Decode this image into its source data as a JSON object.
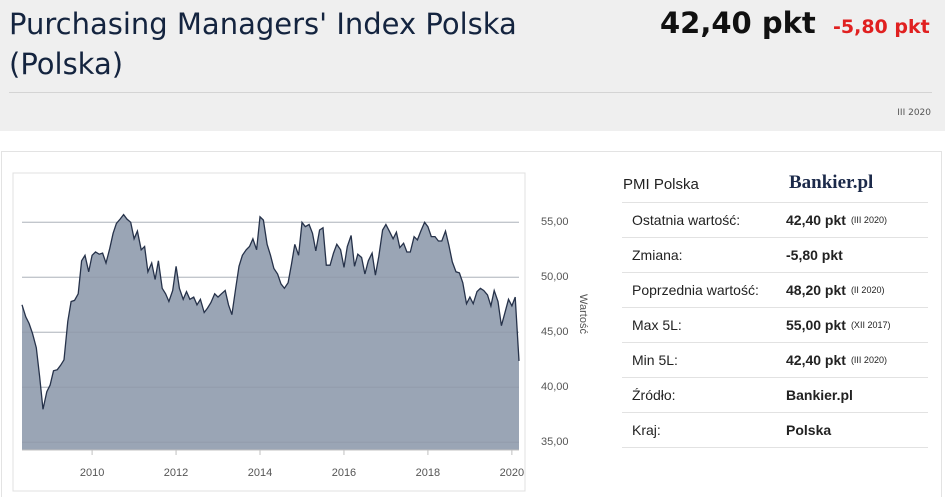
{
  "header": {
    "title": "Purchasing Managers' Index Polska (Polska)",
    "value": "42,40 pkt",
    "change": "-5,80 pkt",
    "date": "III 2020"
  },
  "chart_data": {
    "type": "area",
    "y_label": "Wartość",
    "color": "#9aa5b5",
    "line_color": "#26324a",
    "grid": true,
    "x": [
      2008.33,
      2008.42,
      2008.5,
      2008.58,
      2008.67,
      2008.75,
      2008.83,
      2008.92,
      2009.0,
      2009.08,
      2009.17,
      2009.25,
      2009.33,
      2009.42,
      2009.5,
      2009.58,
      2009.67,
      2009.75,
      2009.83,
      2009.92,
      2010.0,
      2010.08,
      2010.17,
      2010.25,
      2010.33,
      2010.42,
      2010.5,
      2010.58,
      2010.67,
      2010.75,
      2010.83,
      2010.92,
      2011.0,
      2011.08,
      2011.17,
      2011.25,
      2011.33,
      2011.42,
      2011.5,
      2011.58,
      2011.67,
      2011.75,
      2011.83,
      2011.92,
      2012.0,
      2012.08,
      2012.17,
      2012.25,
      2012.33,
      2012.42,
      2012.5,
      2012.58,
      2012.67,
      2012.75,
      2012.83,
      2012.92,
      2013.0,
      2013.08,
      2013.17,
      2013.25,
      2013.33,
      2013.42,
      2013.5,
      2013.58,
      2013.67,
      2013.75,
      2013.83,
      2013.92,
      2014.0,
      2014.08,
      2014.17,
      2014.25,
      2014.33,
      2014.42,
      2014.5,
      2014.58,
      2014.67,
      2014.75,
      2014.83,
      2014.92,
      2015.0,
      2015.08,
      2015.17,
      2015.25,
      2015.33,
      2015.42,
      2015.5,
      2015.58,
      2015.67,
      2015.75,
      2015.83,
      2015.92,
      2016.0,
      2016.08,
      2016.17,
      2016.25,
      2016.33,
      2016.42,
      2016.5,
      2016.58,
      2016.67,
      2016.75,
      2016.83,
      2016.92,
      2017.0,
      2017.08,
      2017.17,
      2017.25,
      2017.33,
      2017.42,
      2017.5,
      2017.58,
      2017.67,
      2017.75,
      2017.83,
      2017.92,
      2018.0,
      2018.08,
      2018.17,
      2018.25,
      2018.33,
      2018.42,
      2018.5,
      2018.58,
      2018.67,
      2018.75,
      2018.83,
      2018.92,
      2019.0,
      2019.08,
      2019.17,
      2019.25,
      2019.33,
      2019.42,
      2019.5,
      2019.58,
      2019.67,
      2019.75,
      2019.83,
      2019.92,
      2020.0,
      2020.08,
      2020.17
    ],
    "values": [
      47.5,
      46.4,
      45.8,
      44.9,
      43.6,
      41.0,
      38.0,
      39.6,
      40.2,
      41.5,
      41.6,
      42.0,
      42.5,
      46.0,
      47.8,
      47.9,
      48.5,
      51.5,
      52.0,
      50.5,
      52.0,
      52.3,
      52.1,
      52.2,
      51.3,
      52.6,
      54.0,
      54.9,
      55.3,
      55.7,
      55.3,
      55.0,
      53.5,
      54.2,
      52.5,
      52.8,
      50.5,
      51.3,
      49.8,
      51.5,
      49.0,
      48.5,
      47.8,
      48.8,
      51.0,
      49.0,
      48.0,
      48.7,
      48.0,
      48.2,
      47.5,
      48.0,
      46.8,
      47.2,
      47.7,
      48.5,
      48.2,
      48.5,
      48.8,
      47.5,
      46.6,
      49.0,
      51.0,
      52.0,
      52.5,
      52.8,
      53.5,
      52.5,
      55.5,
      55.2,
      53.0,
      52.0,
      50.8,
      50.3,
      49.4,
      49.0,
      49.5,
      51.2,
      53.0,
      52.0,
      55.0,
      54.6,
      54.8,
      54.0,
      52.4,
      54.3,
      54.5,
      51.1,
      51.1,
      52.2,
      53.0,
      52.5,
      50.9,
      52.8,
      53.8,
      51.0,
      52.1,
      51.8,
      50.3,
      51.5,
      52.2,
      50.2,
      51.9,
      54.3,
      54.8,
      54.2,
      53.5,
      54.1,
      52.7,
      53.1,
      52.3,
      52.3,
      53.7,
      53.4,
      54.2,
      55.0,
      54.6,
      53.7,
      53.7,
      53.3,
      53.3,
      54.2,
      52.9,
      51.4,
      50.5,
      50.4,
      49.5,
      47.6,
      48.2,
      47.6,
      48.7,
      49.0,
      48.8,
      48.4,
      47.4,
      48.8,
      47.8,
      45.6,
      46.7,
      48.0,
      47.4,
      48.2,
      42.4
    ],
    "xlim": [
      2008.33,
      2020.17
    ],
    "xticks": [
      2010,
      2012,
      2014,
      2016,
      2018,
      2020
    ],
    "ylim": [
      34.3,
      59.3
    ],
    "yticks": [
      {
        "value": 35,
        "label": "35,00"
      },
      {
        "value": 40,
        "label": "40,00"
      },
      {
        "value": 45,
        "label": "45,00"
      },
      {
        "value": 50,
        "label": "50,00"
      },
      {
        "value": 55,
        "label": "55,00"
      }
    ]
  },
  "panel": {
    "title": "PMI Polska",
    "logo": "Bankier.pl",
    "rows": [
      [
        "Ostatnia wartość:",
        "42,40 pkt",
        "(III 2020)"
      ],
      [
        "Zmiana:",
        "-5,80 pkt"
      ],
      [
        "Poprzednia wartość:",
        "48,20 pkt",
        "(II 2020)"
      ],
      [
        "Max 5L:",
        "55,00 pkt",
        "(XII 2017)"
      ],
      [
        "Min 5L:",
        "42,40 pkt",
        "(III 2020)"
      ],
      [
        "Źródło:",
        "Bankier.pl"
      ],
      [
        "Kraj:",
        "Polska"
      ]
    ]
  }
}
